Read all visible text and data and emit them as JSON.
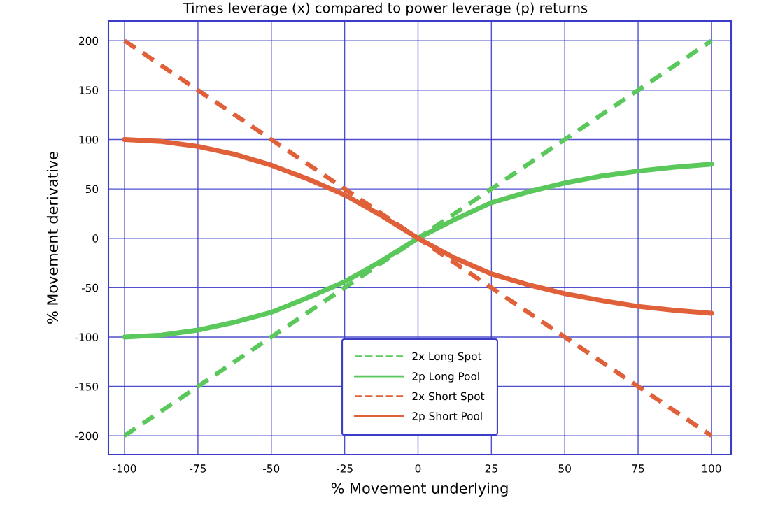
{
  "chart_data": {
    "type": "line",
    "title": "Times leverage (x) compared to power leverage (p) returns",
    "xlabel": "% Movement underlying",
    "ylabel": "% Movement derivative",
    "x": [
      -100,
      -87.5,
      -75,
      -62.5,
      -50,
      -37.5,
      -25,
      -12.5,
      0,
      12.5,
      25,
      37.5,
      50,
      62.5,
      75,
      87.5,
      100
    ],
    "series": [
      {
        "name": "2x Long Spot",
        "color": "#5ac85a",
        "line_style": "dashed",
        "values": [
          -200,
          -175,
          -150,
          -125,
          -100,
          -75,
          -50,
          -25,
          0,
          25,
          50,
          75,
          100,
          125,
          150,
          175,
          200
        ]
      },
      {
        "name": "2p Long Pool",
        "color": "#5ac85a",
        "line_style": "solid",
        "values": [
          -100,
          -98,
          -93,
          -85,
          -75,
          -60,
          -44,
          -23,
          0,
          19,
          36,
          47,
          56,
          63,
          68,
          72,
          75
        ]
      },
      {
        "name": "2x Short Spot",
        "color": "#e0603a",
        "line_style": "dashed",
        "values": [
          200,
          175,
          150,
          125,
          100,
          75,
          50,
          25,
          0,
          -25,
          -50,
          -75,
          -100,
          -125,
          -150,
          -175,
          -200
        ]
      },
      {
        "name": "2p Short Pool",
        "color": "#e0603a",
        "line_style": "solid",
        "values": [
          100,
          98,
          93,
          85,
          74,
          60,
          44,
          23,
          0,
          -20,
          -36,
          -47,
          -56,
          -63,
          -69,
          -73,
          -76
        ]
      }
    ],
    "xlim": [
      -105.5,
      106.7
    ],
    "ylim": [
      -219,
      220
    ],
    "xticks": [
      -100,
      -75,
      -50,
      -25,
      0,
      25,
      50,
      75,
      100
    ],
    "yticks": [
      -200,
      -150,
      -100,
      -50,
      0,
      50,
      100,
      150,
      200
    ],
    "grid": true,
    "legend": "bottom",
    "marker": "none"
  }
}
